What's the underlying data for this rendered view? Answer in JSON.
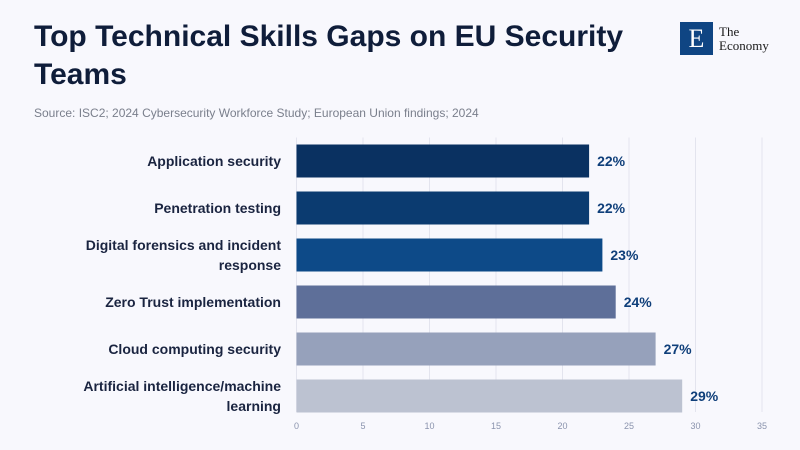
{
  "chart_data": {
    "type": "bar",
    "orientation": "horizontal",
    "title": "Top Technical Skills Gaps on EU Security Teams",
    "source": "Source: ISC2; 2024 Cybersecurity Workforce Study; European Union findings; 2024",
    "categories": [
      [
        "Application security"
      ],
      [
        "Penetration testing"
      ],
      [
        "Digital forensics and incident",
        "response"
      ],
      [
        "Zero Trust implementation"
      ],
      [
        "Cloud computing security"
      ],
      [
        "Artificial intelligence/machine",
        "learning"
      ]
    ],
    "values": [
      22,
      22,
      23,
      24,
      27,
      29
    ],
    "data_labels": [
      "22%",
      "22%",
      "23%",
      "24%",
      "27%",
      "29%"
    ],
    "colors": [
      "#0a3161",
      "#0b3b70",
      "#0d4a88",
      "#5e6f99",
      "#96a1bb",
      "#bcc2d1"
    ],
    "xlim": [
      0,
      35
    ],
    "xticks": [
      0,
      5,
      10,
      15,
      20,
      25,
      30,
      35
    ],
    "grid": true,
    "xlabel": "",
    "ylabel": ""
  },
  "logo": {
    "letter": "E",
    "line1": "The",
    "line2": "Economy"
  }
}
